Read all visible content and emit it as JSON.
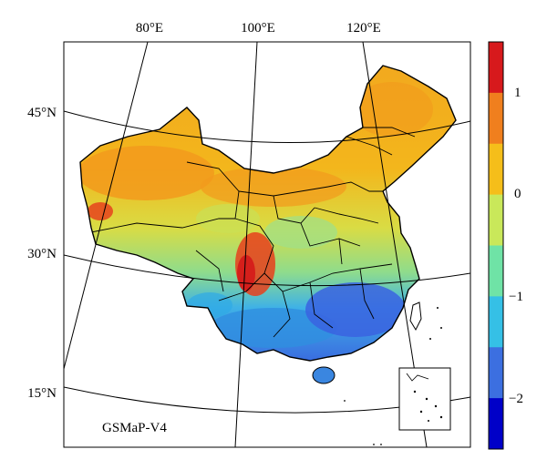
{
  "map": {
    "product_label": "GSMaP-V4",
    "longitude_labels": [
      "80°E",
      "100°E",
      "120°E"
    ],
    "latitude_labels": [
      "45°N",
      "30°N",
      "15°N"
    ]
  },
  "colorbar": {
    "tick_labels": [
      "1",
      "0",
      "−1",
      "−2"
    ],
    "band_colors": [
      "#d7191c",
      "#f07f1e",
      "#f5be1a",
      "#c9e85a",
      "#6fe3a6",
      "#35c0e6",
      "#3c6fe0",
      "#0000c8"
    ],
    "range": [
      -2.5,
      1.5
    ]
  }
}
